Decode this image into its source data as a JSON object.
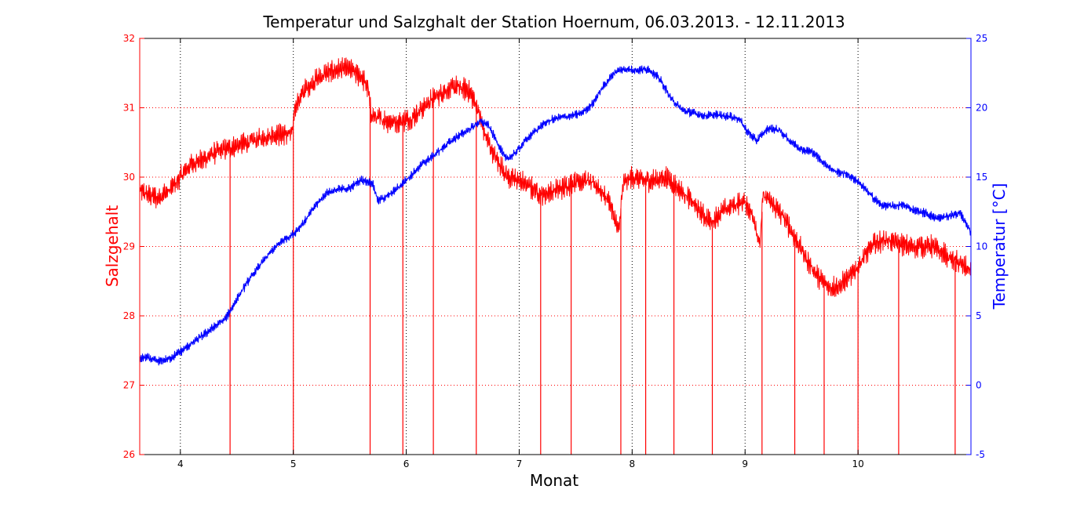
{
  "chart_data": {
    "type": "line",
    "title": "Temperatur und Salzghalt der Station Hoernum, 06.03.2013. - 12.11.2013",
    "xlabel": "Monat",
    "xlim": [
      3.64,
      11.0
    ],
    "x_ticks": [
      4,
      5,
      6,
      7,
      8,
      9,
      10
    ],
    "grid": true,
    "axes": {
      "left": {
        "label": "Salzgehalt",
        "color": "#ff0000",
        "ylim": [
          26,
          32
        ],
        "ticks": [
          26,
          27,
          28,
          29,
          30,
          31,
          32
        ]
      },
      "right": {
        "label": "Temperatur [°C]",
        "color": "#0000ff",
        "ylim": [
          -5,
          25
        ],
        "ticks": [
          -5,
          0,
          5,
          10,
          15,
          20,
          25
        ]
      }
    },
    "series": [
      {
        "name": "Salzgehalt",
        "axis": "left",
        "color": "#ff0000",
        "points": [
          [
            3.64,
            29.8
          ],
          [
            3.7,
            29.75
          ],
          [
            3.8,
            29.7
          ],
          [
            3.9,
            29.8
          ],
          [
            4.0,
            30.0
          ],
          [
            4.1,
            30.2
          ],
          [
            4.2,
            30.25
          ],
          [
            4.3,
            30.35
          ],
          [
            4.4,
            30.4
          ],
          [
            4.5,
            30.45
          ],
          [
            4.6,
            30.5
          ],
          [
            4.7,
            30.55
          ],
          [
            4.8,
            30.6
          ],
          [
            4.9,
            30.62
          ],
          [
            4.99,
            30.62
          ],
          [
            5.01,
            31.0
          ],
          [
            5.1,
            31.25
          ],
          [
            5.2,
            31.4
          ],
          [
            5.3,
            31.5
          ],
          [
            5.4,
            31.55
          ],
          [
            5.5,
            31.55
          ],
          [
            5.6,
            31.45
          ],
          [
            5.66,
            31.3
          ],
          [
            5.69,
            30.9
          ],
          [
            5.75,
            30.85
          ],
          [
            5.85,
            30.8
          ],
          [
            5.95,
            30.8
          ],
          [
            6.05,
            30.85
          ],
          [
            6.15,
            31.0
          ],
          [
            6.25,
            31.15
          ],
          [
            6.35,
            31.25
          ],
          [
            6.45,
            31.3
          ],
          [
            6.55,
            31.25
          ],
          [
            6.62,
            31.05
          ],
          [
            6.7,
            30.6
          ],
          [
            6.8,
            30.25
          ],
          [
            6.9,
            30.0
          ],
          [
            7.0,
            29.95
          ],
          [
            7.1,
            29.85
          ],
          [
            7.2,
            29.75
          ],
          [
            7.3,
            29.8
          ],
          [
            7.4,
            29.85
          ],
          [
            7.5,
            29.95
          ],
          [
            7.6,
            29.95
          ],
          [
            7.7,
            29.85
          ],
          [
            7.8,
            29.65
          ],
          [
            7.88,
            29.2
          ],
          [
            7.92,
            29.9
          ],
          [
            8.0,
            30.0
          ],
          [
            8.1,
            29.95
          ],
          [
            8.2,
            29.95
          ],
          [
            8.3,
            30.0
          ],
          [
            8.4,
            29.85
          ],
          [
            8.5,
            29.7
          ],
          [
            8.6,
            29.5
          ],
          [
            8.7,
            29.35
          ],
          [
            8.8,
            29.5
          ],
          [
            8.9,
            29.6
          ],
          [
            9.0,
            29.65
          ],
          [
            9.08,
            29.4
          ],
          [
            9.13,
            29.0
          ],
          [
            9.16,
            29.75
          ],
          [
            9.25,
            29.6
          ],
          [
            9.35,
            29.4
          ],
          [
            9.45,
            29.1
          ],
          [
            9.55,
            28.8
          ],
          [
            9.65,
            28.55
          ],
          [
            9.75,
            28.4
          ],
          [
            9.85,
            28.45
          ],
          [
            9.95,
            28.6
          ],
          [
            10.05,
            28.85
          ],
          [
            10.15,
            29.05
          ],
          [
            10.25,
            29.1
          ],
          [
            10.35,
            29.05
          ],
          [
            10.45,
            29.0
          ],
          [
            10.55,
            29.0
          ],
          [
            10.65,
            29.0
          ],
          [
            10.75,
            28.9
          ],
          [
            10.85,
            28.8
          ],
          [
            10.95,
            28.7
          ],
          [
            11.0,
            28.65
          ]
        ],
        "dropouts_x": [
          4.44,
          5.0,
          5.68,
          5.97,
          6.24,
          6.62,
          7.19,
          7.46,
          7.9,
          8.12,
          8.37,
          8.71,
          9.15,
          9.44,
          9.7,
          10.0,
          10.36,
          10.86
        ]
      },
      {
        "name": "Temperatur",
        "axis": "right",
        "color": "#0000ff",
        "points": [
          [
            3.64,
            1.9
          ],
          [
            3.7,
            2.0
          ],
          [
            3.8,
            1.7
          ],
          [
            3.9,
            1.9
          ],
          [
            4.0,
            2.4
          ],
          [
            4.1,
            3.0
          ],
          [
            4.2,
            3.6
          ],
          [
            4.3,
            4.2
          ],
          [
            4.4,
            4.8
          ],
          [
            4.5,
            6.2
          ],
          [
            4.6,
            7.5
          ],
          [
            4.7,
            8.6
          ],
          [
            4.8,
            9.6
          ],
          [
            4.9,
            10.4
          ],
          [
            5.0,
            10.9
          ],
          [
            5.1,
            11.8
          ],
          [
            5.2,
            13.0
          ],
          [
            5.3,
            13.9
          ],
          [
            5.4,
            14.1
          ],
          [
            5.5,
            14.2
          ],
          [
            5.6,
            14.8
          ],
          [
            5.7,
            14.6
          ],
          [
            5.75,
            13.3
          ],
          [
            5.85,
            13.7
          ],
          [
            5.95,
            14.4
          ],
          [
            6.05,
            15.2
          ],
          [
            6.15,
            16.0
          ],
          [
            6.25,
            16.6
          ],
          [
            6.35,
            17.3
          ],
          [
            6.45,
            17.9
          ],
          [
            6.55,
            18.4
          ],
          [
            6.65,
            19.0
          ],
          [
            6.72,
            18.8
          ],
          [
            6.8,
            17.6
          ],
          [
            6.88,
            16.3
          ],
          [
            6.95,
            16.6
          ],
          [
            7.05,
            17.6
          ],
          [
            7.15,
            18.4
          ],
          [
            7.25,
            19.0
          ],
          [
            7.35,
            19.3
          ],
          [
            7.45,
            19.4
          ],
          [
            7.55,
            19.6
          ],
          [
            7.65,
            20.3
          ],
          [
            7.75,
            21.6
          ],
          [
            7.85,
            22.6
          ],
          [
            7.95,
            22.8
          ],
          [
            8.05,
            22.7
          ],
          [
            8.15,
            22.8
          ],
          [
            8.25,
            22.0
          ],
          [
            8.35,
            20.6
          ],
          [
            8.45,
            19.8
          ],
          [
            8.55,
            19.6
          ],
          [
            8.65,
            19.4
          ],
          [
            8.75,
            19.5
          ],
          [
            8.85,
            19.4
          ],
          [
            8.95,
            19.2
          ],
          [
            9.0,
            18.5
          ],
          [
            9.1,
            17.6
          ],
          [
            9.2,
            18.5
          ],
          [
            9.3,
            18.4
          ],
          [
            9.4,
            17.6
          ],
          [
            9.5,
            17.0
          ],
          [
            9.6,
            16.8
          ],
          [
            9.7,
            16.0
          ],
          [
            9.8,
            15.4
          ],
          [
            9.9,
            15.2
          ],
          [
            10.0,
            14.7
          ],
          [
            10.1,
            13.8
          ],
          [
            10.2,
            13.0
          ],
          [
            10.3,
            12.9
          ],
          [
            10.4,
            13.0
          ],
          [
            10.5,
            12.6
          ],
          [
            10.6,
            12.4
          ],
          [
            10.7,
            12.0
          ],
          [
            10.8,
            12.2
          ],
          [
            10.9,
            12.4
          ],
          [
            10.95,
            11.8
          ],
          [
            11.0,
            11.0
          ]
        ]
      }
    ]
  }
}
